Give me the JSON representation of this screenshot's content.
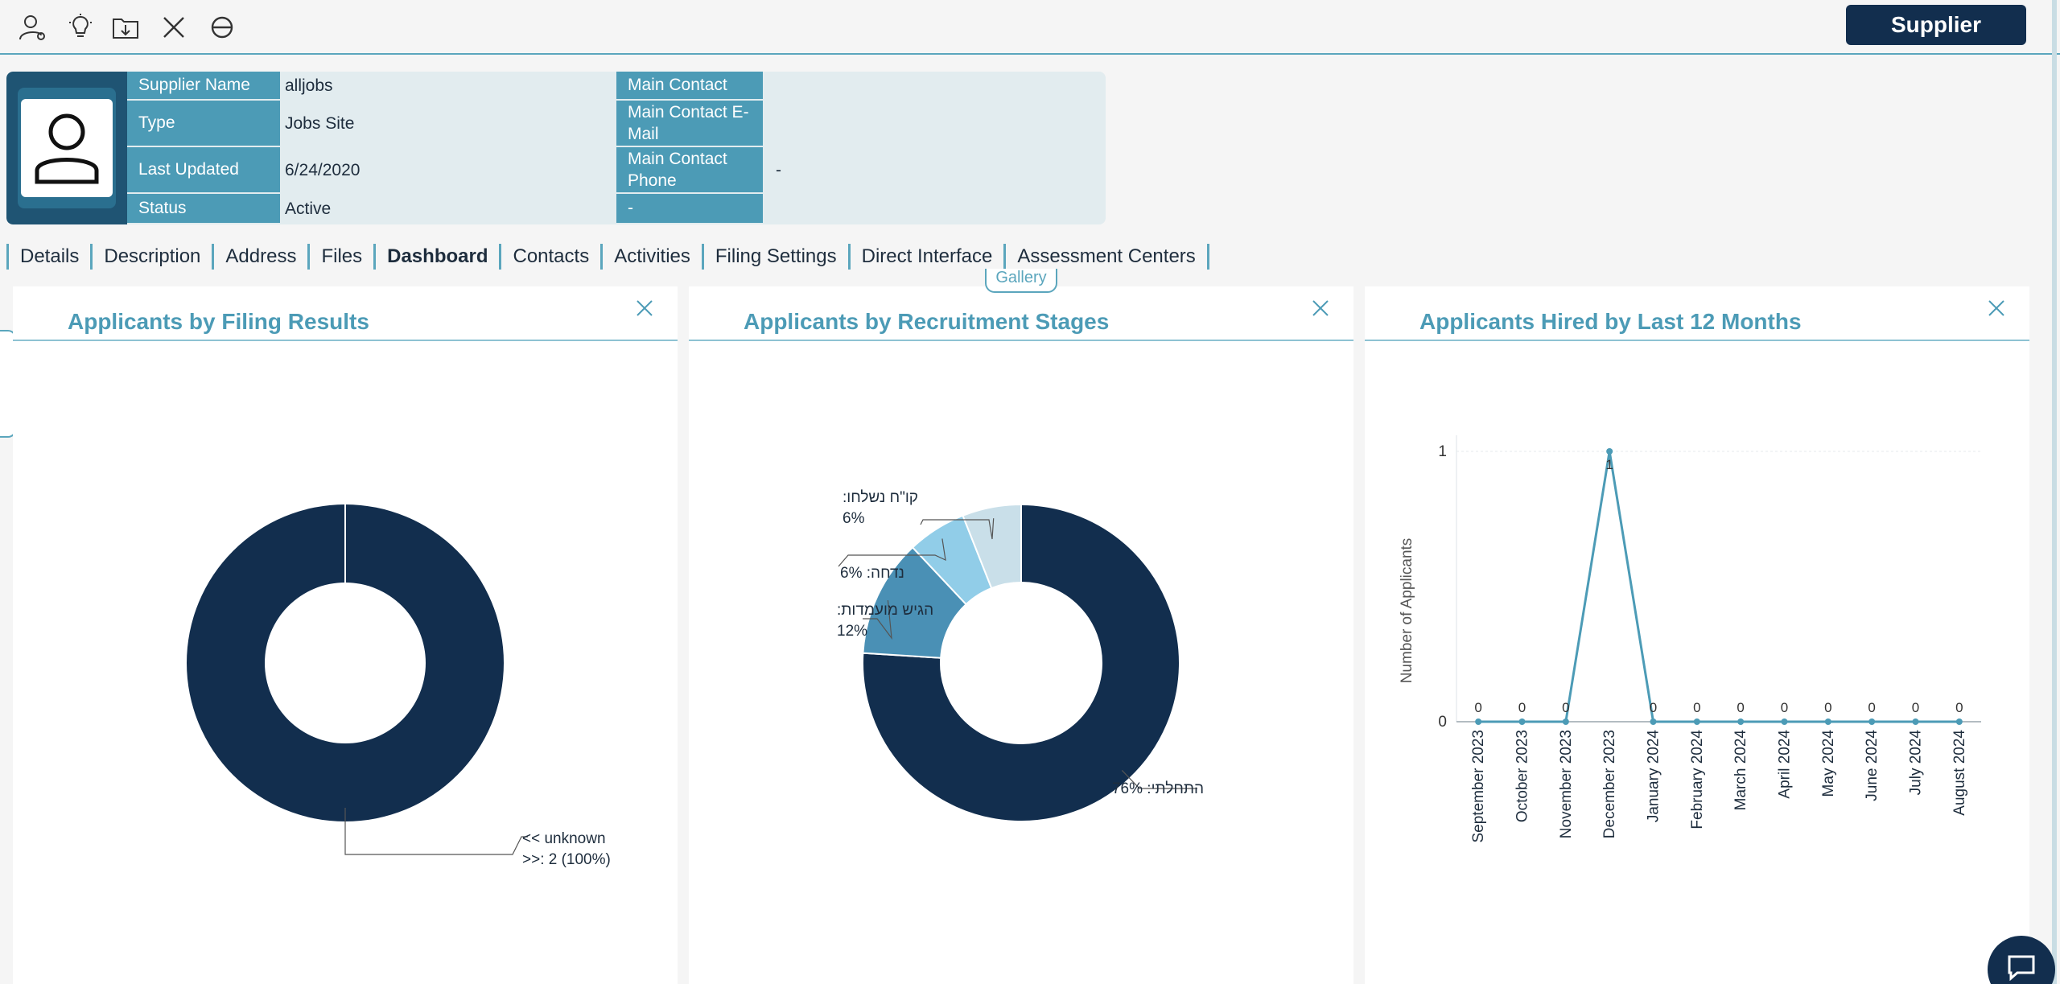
{
  "toolbar": {
    "icons": [
      "user-settings-icon",
      "lightbulb-icon",
      "download-folder-icon",
      "close-icon",
      "block-icon"
    ],
    "supplier_button": "Supplier"
  },
  "header": {
    "rows": [
      {
        "label": "Supplier Name",
        "value": "alljobs",
        "label2": "Main Contact",
        "value2": ""
      },
      {
        "label": "Type",
        "value": "Jobs Site",
        "label2": "Main Contact E-Mail",
        "value2": ""
      },
      {
        "label": "Last Updated",
        "value": "6/24/2020",
        "label2": "Main Contact Phone",
        "value2": "-"
      },
      {
        "label": "Status",
        "value": "Active",
        "label2": "-",
        "value2": ""
      }
    ]
  },
  "tabs": [
    "Details",
    "Description",
    "Address",
    "Files",
    "Dashboard",
    "Contacts",
    "Activities",
    "Filing Settings",
    "Direct Interface",
    "Assessment Centers"
  ],
  "active_tab": "Dashboard",
  "gallery_label": "Gallery",
  "colors": {
    "dark": "#122e4e",
    "teal": "#4c9bb6",
    "light_blue": "#91cde8",
    "pale_blue": "#c9dfe9"
  },
  "panels": {
    "filing": {
      "title": "Applicants by Filing Results"
    },
    "stages": {
      "title": "Applicants by Recruitment Stages"
    },
    "hired": {
      "title": "Applicants Hired by Last 12 Months"
    }
  },
  "chart_data": [
    {
      "type": "pie",
      "title": "Applicants by Filing Results",
      "slices": [
        {
          "label": "<< unknown >>: 2 (100%)",
          "label_lines": [
            "<< unknown",
            ">>: 2 (100%)"
          ],
          "value": 2,
          "percent": 100,
          "color": "#122e4e"
        }
      ]
    },
    {
      "type": "pie",
      "title": "Applicants by Recruitment Stages",
      "slices": [
        {
          "label": "התחלתי: 76%",
          "label_lines": [
            "התחלתי: 76%"
          ],
          "percent": 76,
          "color": "#122e4e"
        },
        {
          "label": "הגיש מועמדות: 12%",
          "label_lines": [
            "הגיש מועמדות:",
            "12%"
          ],
          "percent": 12,
          "color": "#4a90b5"
        },
        {
          "label": "נדחה: 6%",
          "label_lines": [
            "נדחה: 6%"
          ],
          "percent": 6,
          "color": "#91cde8"
        },
        {
          "label": "קו\"ח נשלחו: 6%",
          "label_lines": [
            "קו\"ח נשלחו:",
            "6%"
          ],
          "percent": 6,
          "color": "#c9dfe9"
        }
      ]
    },
    {
      "type": "line",
      "title": "Applicants Hired by Last 12 Months",
      "ylabel": "Number of Applicants",
      "categories": [
        "September 2023",
        "October 2023",
        "November 2023",
        "December 2023",
        "January 2024",
        "February 2024",
        "March 2024",
        "April 2024",
        "May 2024",
        "June 2024",
        "July 2024",
        "August 2024"
      ],
      "values": [
        0,
        0,
        0,
        1,
        0,
        0,
        0,
        0,
        0,
        0,
        0,
        0
      ],
      "ylim": [
        0,
        1
      ],
      "yticks": [
        "0",
        "1"
      ],
      "color": "#4c9bb6"
    }
  ]
}
